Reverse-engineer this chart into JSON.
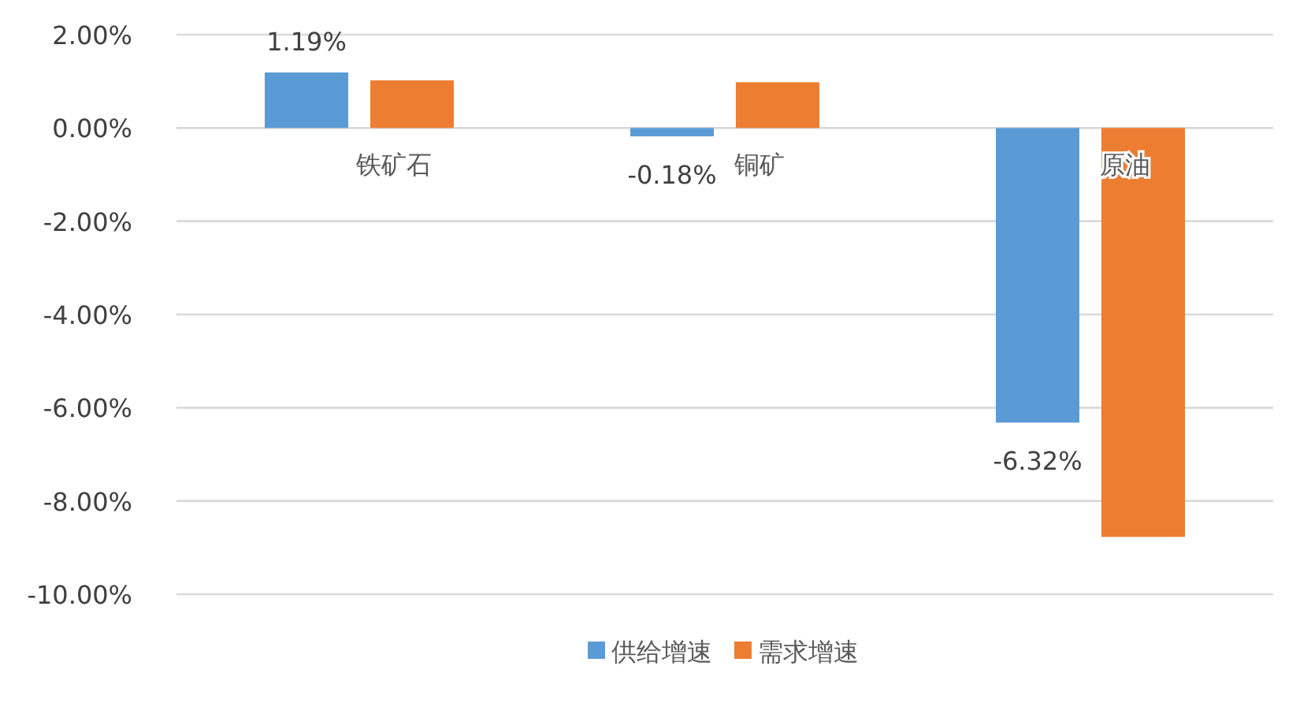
{
  "chart_data": {
    "type": "bar",
    "categories": [
      "铁矿石",
      "铜矿",
      "原油"
    ],
    "series": [
      {
        "name": "供给增速",
        "color": "#5b9bd5",
        "values": [
          1.19,
          -0.18,
          -6.32
        ],
        "value_labels": [
          "1.19%",
          "-0.18%",
          "-6.32%"
        ]
      },
      {
        "name": "需求增速",
        "color": "#ed7d31",
        "values": [
          1.02,
          0.98,
          -8.77
        ]
      }
    ],
    "ylim": [
      -10,
      2
    ],
    "yticks": [
      {
        "value": 2,
        "label": "2.00%"
      },
      {
        "value": 0,
        "label": "0.00%"
      },
      {
        "value": -2,
        "label": "-2.00%"
      },
      {
        "value": -4,
        "label": "-4.00%"
      },
      {
        "value": -6,
        "label": "-6.00%"
      },
      {
        "value": -8,
        "label": "-8.00%"
      },
      {
        "value": -10,
        "label": "-10.00%"
      }
    ],
    "grid": "y",
    "legend": "bottom"
  }
}
